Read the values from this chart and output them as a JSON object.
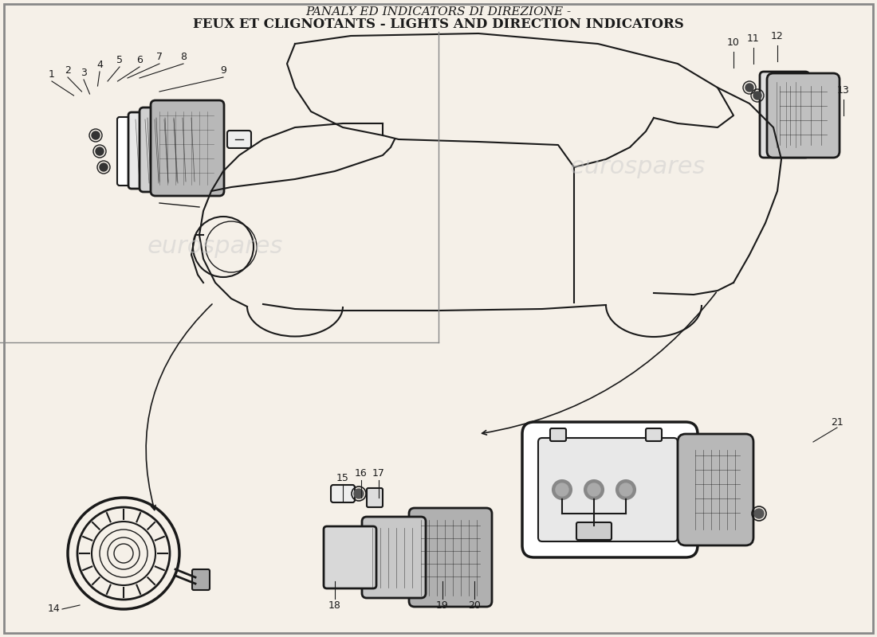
{
  "title_line1": "PANALY ED INDICATORS DI DIREZIONE -",
  "title_line2": "FEUX ET CLIGNOTANTS - LIGHTS AND DIRECTION INDICATORS",
  "bg_color": "#f5f0e8",
  "line_color": "#1a1a1a",
  "watermark_text1": "eurospares",
  "watermark_text2": "eurospares",
  "part_numbers_top_left": [
    "1",
    "2",
    "3",
    "4",
    "5",
    "6",
    "7",
    "8",
    "9"
  ],
  "part_numbers_top_right": [
    "10",
    "11",
    "12",
    "13"
  ],
  "part_numbers_bottom_left": [
    "14"
  ],
  "part_numbers_bottom_mid": [
    "15",
    "16",
    "17",
    "18",
    "19",
    "20"
  ],
  "part_numbers_bottom_right": [
    "21"
  ],
  "title_fontsize": 11,
  "label_fontsize": 9
}
